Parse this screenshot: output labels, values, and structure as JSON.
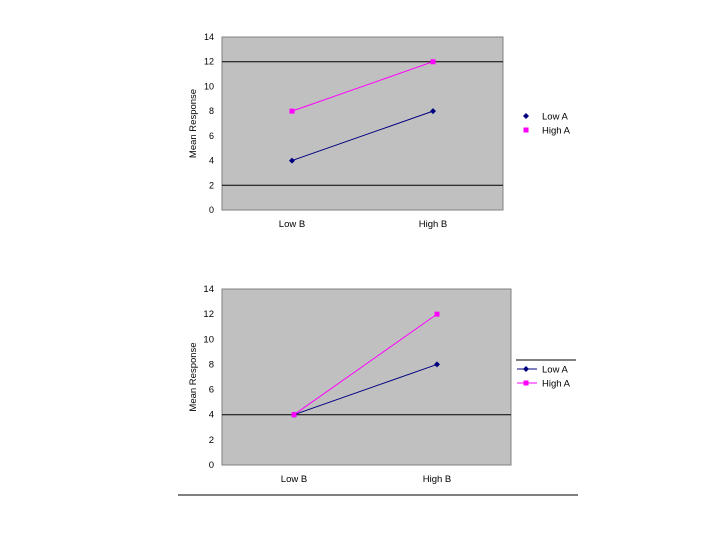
{
  "chart_data": [
    {
      "type": "line",
      "categories": [
        "Low B",
        "High B"
      ],
      "series": [
        {
          "name": "Low A",
          "values": [
            4,
            8
          ],
          "color": "#000080",
          "marker": "diamond"
        },
        {
          "name": "High A",
          "values": [
            8,
            12
          ],
          "color": "#ff00ff",
          "marker": "square"
        }
      ],
      "ylabel": "Mean Response",
      "ylim": [
        0,
        14
      ],
      "yticks": [
        0,
        2,
        4,
        6,
        8,
        10,
        12,
        14
      ],
      "gridlines": [
        2,
        12
      ],
      "legend_position": "right",
      "plot_background": "#c0c0c0"
    },
    {
      "type": "line",
      "categories": [
        "Low B",
        "High B"
      ],
      "series": [
        {
          "name": "Low A",
          "values": [
            4,
            8
          ],
          "color": "#000080",
          "marker": "diamond"
        },
        {
          "name": "High A",
          "values": [
            4,
            12
          ],
          "color": "#ff00ff",
          "marker": "square"
        }
      ],
      "ylabel": "Mean Response",
      "ylim": [
        0,
        14
      ],
      "yticks": [
        0,
        2,
        4,
        6,
        8,
        10,
        12,
        14
      ],
      "gridlines": [
        4
      ],
      "legend_position": "right",
      "plot_background": "#c0c0c0"
    }
  ]
}
